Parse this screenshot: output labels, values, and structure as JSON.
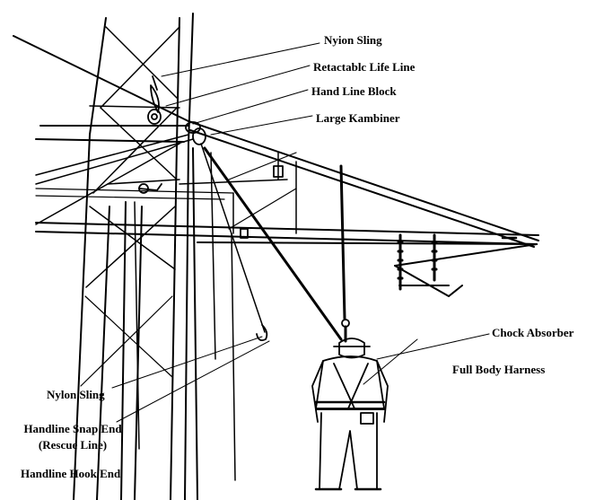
{
  "labels": {
    "nylon_sling_top": "Nyion Sling",
    "retractable_life_line": "Retactablc Life Line",
    "hand_line_block": "Hand Line Block",
    "large_karabiner": "Large Kambiner",
    "shock_absorber": "Chock Absorber",
    "full_body_harness": "Full Body Harness",
    "nylon_sling_bottom": "Nylon Sling",
    "handline_snap_end": "Handline Snap End",
    "rescue_line": "(Rescue Line)",
    "handline_hook_end": "Handline Hook End"
  },
  "colors": {
    "ink": "#000000",
    "background": "#ffffff"
  }
}
